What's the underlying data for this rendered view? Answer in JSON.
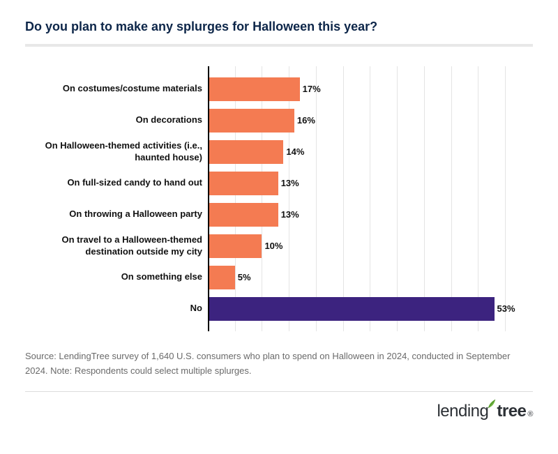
{
  "title": "Do you plan to make any splurges for Halloween this year?",
  "chart": {
    "type": "bar",
    "orientation": "horizontal",
    "xlim_max": 55,
    "grid_step": 5,
    "grid_color": "#e4e4e4",
    "axis_color": "#000000",
    "default_bar_color": "#f47b52",
    "highlight_bar_color": "#3c237f",
    "value_suffix": "%",
    "label_fontsize": 13,
    "value_fontsize": 13,
    "items": [
      {
        "label": "On costumes/costume materials",
        "value": 17,
        "color": "#f47b52"
      },
      {
        "label": "On decorations",
        "value": 16,
        "color": "#f47b52"
      },
      {
        "label": "On Halloween-themed activities (i.e., haunted house)",
        "value": 14,
        "color": "#f47b52"
      },
      {
        "label": "On full-sized candy to hand out",
        "value": 13,
        "color": "#f47b52"
      },
      {
        "label": "On throwing a Halloween party",
        "value": 13,
        "color": "#f47b52"
      },
      {
        "label": "On travel to a Halloween-themed destination outside my city",
        "value": 10,
        "color": "#f47b52"
      },
      {
        "label": "On something else",
        "value": 5,
        "color": "#f47b52"
      },
      {
        "label": "No",
        "value": 53,
        "color": "#3c237f"
      }
    ]
  },
  "source": "Source: LendingTree survey of 1,640 U.S. consumers who plan to spend on Halloween in 2024, conducted in September 2024. Note: Respondents could select multiple splurges.",
  "logo": {
    "thin": "lending",
    "bold": "tree",
    "reg": "®",
    "text_color": "#2c3035",
    "leaf_color": "#6eb43f"
  }
}
